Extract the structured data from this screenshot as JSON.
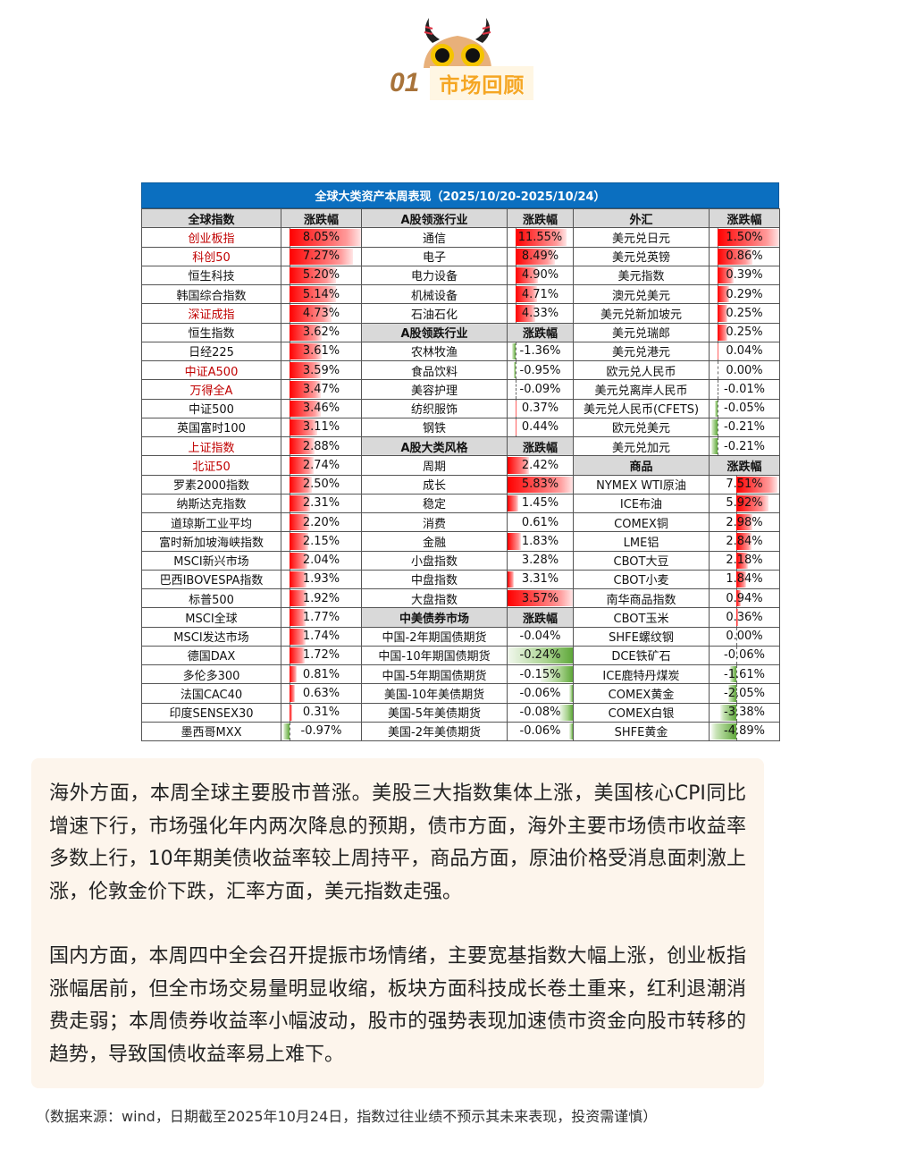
{
  "section": {
    "number": "01",
    "label": "市场回顾"
  },
  "table": {
    "title": "全球大类资产本周表现（2025/10/20-2025/10/24）",
    "colors": {
      "up": "#ff0000",
      "down": "#5fa83a",
      "highlight_text": "#c00000",
      "title_bg": "#0b6fc0",
      "header_bg": "#d9d9d9"
    },
    "col1": {
      "header": [
        "全球指数",
        "涨跌幅"
      ],
      "rows": [
        {
          "name": "创业板指",
          "value": "8.05%",
          "bar": 0.9,
          "hl": true
        },
        {
          "name": "科创50",
          "value": "7.27%",
          "bar": 0.8,
          "hl": true
        },
        {
          "name": "恒生科技",
          "value": "5.20%",
          "bar": 0.59
        },
        {
          "name": "韩国综合指数",
          "value": "5.14%",
          "bar": 0.58
        },
        {
          "name": "深证成指",
          "value": "4.73%",
          "bar": 0.53,
          "hl": true
        },
        {
          "name": "恒生指数",
          "value": "3.62%",
          "bar": 0.41
        },
        {
          "name": "日经225",
          "value": "3.61%",
          "bar": 0.41
        },
        {
          "name": "中证A500",
          "value": "3.59%",
          "bar": 0.4,
          "hl": true
        },
        {
          "name": "万得全A",
          "value": "3.47%",
          "bar": 0.39,
          "hl": true
        },
        {
          "name": "中证500",
          "value": "3.46%",
          "bar": 0.39
        },
        {
          "name": "英国富时100",
          "value": "3.11%",
          "bar": 0.35
        },
        {
          "name": "上证指数",
          "value": "2.88%",
          "bar": 0.32,
          "hl": true
        },
        {
          "name": "北证50",
          "value": "2.74%",
          "bar": 0.31,
          "hl": true
        },
        {
          "name": "罗素2000指数",
          "value": "2.50%",
          "bar": 0.28
        },
        {
          "name": "纳斯达克指数",
          "value": "2.31%",
          "bar": 0.26
        },
        {
          "name": "道琼斯工业平均",
          "value": "2.20%",
          "bar": 0.25
        },
        {
          "name": "富时新加坡海峡指数",
          "value": "2.15%",
          "bar": 0.24
        },
        {
          "name": "MSCI新兴市场",
          "value": "2.04%",
          "bar": 0.23
        },
        {
          "name": "巴西IBOVESPA指数",
          "value": "1.93%",
          "bar": 0.22
        },
        {
          "name": "标普500",
          "value": "1.92%",
          "bar": 0.22
        },
        {
          "name": "MSCI全球",
          "value": "1.77%",
          "bar": 0.2
        },
        {
          "name": "MSCI发达市场",
          "value": "1.74%",
          "bar": 0.2
        },
        {
          "name": "德国DAX",
          "value": "1.72%",
          "bar": 0.19
        },
        {
          "name": "多伦多300",
          "value": "0.81%",
          "bar": 0.09
        },
        {
          "name": "法国CAC40",
          "value": "0.63%",
          "bar": 0.07
        },
        {
          "name": "印度SENSEX30",
          "value": "0.31%",
          "bar": 0.035
        },
        {
          "name": "墨西哥MXX",
          "value": "-0.97%",
          "bar": -0.08
        }
      ]
    },
    "col2": {
      "sections": [
        {
          "key": "lead",
          "header": [
            "A股领涨行业",
            "涨跌幅"
          ],
          "rows": [
            {
              "name": "通信",
              "value": "11.55%",
              "bar": 0.78
            },
            {
              "name": "电子",
              "value": "8.49%",
              "bar": 0.6
            },
            {
              "name": "电力设备",
              "value": "4.90%",
              "bar": 0.35
            },
            {
              "name": "机械设备",
              "value": "4.71%",
              "bar": 0.33
            },
            {
              "name": "石油石化",
              "value": "4.33%",
              "bar": 0.3
            }
          ]
        },
        {
          "key": "lag",
          "header": [
            "A股领跌行业",
            "涨跌幅"
          ],
          "rows": [
            {
              "name": "农林牧渔",
              "value": "-1.36%",
              "bar": -0.05
            },
            {
              "name": "食品饮料",
              "value": "-0.95%",
              "bar": -0.03
            },
            {
              "name": "美容护理",
              "value": "-0.09%",
              "bar": 0
            },
            {
              "name": "纺织服饰",
              "value": "0.37%",
              "bar": 0.02
            },
            {
              "name": "钢铁",
              "value": "0.44%",
              "bar": 0.02
            }
          ]
        },
        {
          "key": "style",
          "header": [
            "A股大类风格",
            "涨跌幅"
          ],
          "rows": [
            {
              "name": "周期",
              "value": "2.42%",
              "bar": 0.33
            },
            {
              "name": "成长",
              "value": "5.83%",
              "bar": 1.0
            },
            {
              "name": "稳定",
              "value": "1.45%",
              "bar": 0.16
            },
            {
              "name": "消费",
              "value": "0.61%",
              "bar": 0
            },
            {
              "name": "金融",
              "value": "1.83%",
              "bar": 0.2
            },
            {
              "name": "小盘指数",
              "value": "3.28%",
              "bar": 0
            },
            {
              "name": "中盘指数",
              "value": "3.31%",
              "bar": 0.09
            },
            {
              "name": "大盘指数",
              "value": "3.57%",
              "bar": 1.0
            }
          ]
        },
        {
          "key": "bond",
          "header": [
            "中美债券市场",
            "涨跌幅"
          ],
          "rows": [
            {
              "name": "中国-2年期国债期货",
              "value": "-0.04%",
              "bar": 0
            },
            {
              "name": "中国-10年期国债期货",
              "value": "-0.24%",
              "bar": -1.0
            },
            {
              "name": "中国-5年期国债期货",
              "value": "-0.15%",
              "bar": -0.5
            },
            {
              "name": "美国-10年美债期货",
              "value": "-0.06%",
              "bar": -0.05
            },
            {
              "name": "美国-5年美债期货",
              "value": "-0.08%",
              "bar": -0.2
            },
            {
              "name": "美国-2年美债期货",
              "value": "-0.06%",
              "bar": -0.05
            }
          ]
        }
      ]
    },
    "col3": {
      "sections": [
        {
          "key": "fx",
          "header": [
            "外汇",
            "涨跌幅"
          ],
          "rows": [
            {
              "name": "美元兑日元",
              "value": "1.50%",
              "bar": 0.89
            },
            {
              "name": "美元兑英镑",
              "value": "0.86%",
              "bar": 0.5
            },
            {
              "name": "美元指数",
              "value": "0.39%",
              "bar": 0.23
            },
            {
              "name": "澳元兑美元",
              "value": "0.29%",
              "bar": 0.17
            },
            {
              "name": "美元兑新加坡元",
              "value": "0.25%",
              "bar": 0.15
            },
            {
              "name": "美元兑瑞郎",
              "value": "0.25%",
              "bar": 0.15
            },
            {
              "name": "美元兑港元",
              "value": "0.04%",
              "bar": 0.02
            },
            {
              "name": "欧元兑人民币",
              "value": "0.00%",
              "bar": 0
            },
            {
              "name": "美元兑离岸人民币",
              "value": "-0.01%",
              "bar": 0
            },
            {
              "name": "美元兑人民币(CFETS)",
              "value": "-0.05%",
              "bar": -0.03
            },
            {
              "name": "欧元兑美元",
              "value": "-0.21%",
              "bar": -0.09
            },
            {
              "name": "美元兑加元",
              "value": "-0.21%",
              "bar": -0.09
            }
          ]
        },
        {
          "key": "cmd",
          "header": [
            "商品",
            "涨跌幅"
          ],
          "rows": [
            {
              "name": "NYMEX WTI原油",
              "value": "7.51%",
              "bar": 0.6
            },
            {
              "name": "ICE布油",
              "value": "5.92%",
              "bar": 0.47
            },
            {
              "name": "COMEX铜",
              "value": "2.98%",
              "bar": 0.24
            },
            {
              "name": "LME铝",
              "value": "2.84%",
              "bar": 0.22
            },
            {
              "name": "CBOT大豆",
              "value": "2.18%",
              "bar": 0.17
            },
            {
              "name": "CBOT小麦",
              "value": "1.84%",
              "bar": 0.14
            },
            {
              "name": "南华商品指数",
              "value": "0.94%",
              "bar": 0.07
            },
            {
              "name": "CBOT玉米",
              "value": "0.36%",
              "bar": 0.03
            },
            {
              "name": "SHFE螺纹钢",
              "value": "0.00%",
              "bar": 0
            },
            {
              "name": "DCE铁矿石",
              "value": "-0.06%",
              "bar": 0
            },
            {
              "name": "ICE鹿特丹煤炭",
              "value": "-1.61%",
              "bar": -0.08
            },
            {
              "name": "COMEX黄金",
              "value": "-2.05%",
              "bar": -0.11
            },
            {
              "name": "COMEX白银",
              "value": "-3.38%",
              "bar": -0.23
            },
            {
              "name": "SHFE黄金",
              "value": "-4.89%",
              "bar": -0.35
            }
          ]
        }
      ]
    }
  },
  "commentary": [
    "海外方面，本周全球主要股市普涨。美股三大指数集体上涨，美国核心CPI同比增速下行，市场强化年内两次降息的预期，债市方面，海外主要市场债市收益率多数上行，10年期美债收益率较上周持平，商品方面，原油价格受消息面刺激上涨，伦敦金价下跌，汇率方面，美元指数走强。",
    "国内方面，本周四中全会召开提振市场情绪，主要宽基指数大幅上涨，创业板指涨幅居前，但全市场交易量明显收缩，板块方面科技成长卷土重来，红利退潮消费走弱；本周债券收益率小幅波动，股市的强势表现加速债市资金向股市转移的趋势，导致国债收益率易上难下。"
  ],
  "footnote": "（数据来源：wind，日期截至2025年10月24日，指数过往业绩不预示其未来表现，投资需谨慎）"
}
